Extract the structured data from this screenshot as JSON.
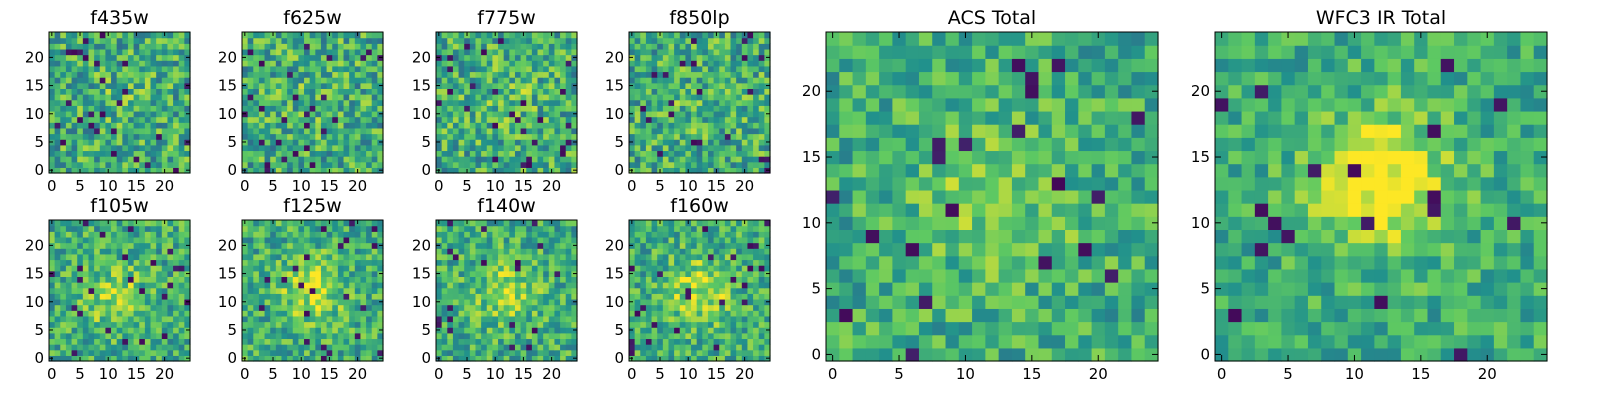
{
  "colors": {
    "colormap": [
      "#440154",
      "#3b528b",
      "#21918c",
      "#5ec962",
      "#fde725"
    ],
    "frame": "#000000",
    "background": "#ffffff"
  },
  "chart_data": [
    {
      "type": "heatmap",
      "title": "f435w",
      "grid_size": 25,
      "xlim": [
        0,
        24
      ],
      "ylim": [
        0,
        24
      ],
      "xticks": [
        0,
        5,
        10,
        15,
        20
      ],
      "yticks": [
        0,
        5,
        10,
        15,
        20
      ],
      "xtick_labels": [
        "0",
        "5",
        "10",
        "15",
        "20"
      ],
      "ytick_labels": [
        "0",
        "5",
        "10",
        "15",
        "20"
      ],
      "seed": 11,
      "bump": 0.05,
      "bump_center": [
        12,
        12
      ],
      "bump_width": 4,
      "noise": 0.26
    },
    {
      "type": "heatmap",
      "title": "f625w",
      "grid_size": 25,
      "xlim": [
        0,
        24
      ],
      "ylim": [
        0,
        24
      ],
      "xticks": [
        0,
        5,
        10,
        15,
        20
      ],
      "yticks": [
        0,
        5,
        10,
        15,
        20
      ],
      "xtick_labels": [
        "0",
        "5",
        "10",
        "15",
        "20"
      ],
      "ytick_labels": [
        "0",
        "5",
        "10",
        "15",
        "20"
      ],
      "seed": 23,
      "bump": 0.05,
      "bump_center": [
        12,
        12
      ],
      "bump_width": 4,
      "noise": 0.26
    },
    {
      "type": "heatmap",
      "title": "f775w",
      "grid_size": 25,
      "xlim": [
        0,
        24
      ],
      "ylim": [
        0,
        24
      ],
      "xticks": [
        0,
        5,
        10,
        15,
        20
      ],
      "yticks": [
        0,
        5,
        10,
        15,
        20
      ],
      "xtick_labels": [
        "0",
        "5",
        "10",
        "15",
        "20"
      ],
      "ytick_labels": [
        "0",
        "5",
        "10",
        "15",
        "20"
      ],
      "seed": 37,
      "bump": 0.1,
      "bump_center": [
        12,
        13
      ],
      "bump_width": 4,
      "noise": 0.26
    },
    {
      "type": "heatmap",
      "title": "f850lp",
      "grid_size": 25,
      "xlim": [
        0,
        24
      ],
      "ylim": [
        0,
        24
      ],
      "xticks": [
        0,
        5,
        10,
        15,
        20
      ],
      "yticks": [
        0,
        5,
        10,
        15,
        20
      ],
      "xtick_labels": [
        "0",
        "5",
        "10",
        "15",
        "20"
      ],
      "ytick_labels": [
        "0",
        "5",
        "10",
        "15",
        "20"
      ],
      "seed": 41,
      "bump": 0.05,
      "bump_center": [
        12,
        12
      ],
      "bump_width": 4,
      "noise": 0.26
    },
    {
      "type": "heatmap",
      "title": "f105w",
      "grid_size": 25,
      "xlim": [
        0,
        24
      ],
      "ylim": [
        0,
        24
      ],
      "xticks": [
        0,
        5,
        10,
        15,
        20
      ],
      "yticks": [
        0,
        5,
        10,
        15,
        20
      ],
      "xtick_labels": [
        "0",
        "5",
        "10",
        "15",
        "20"
      ],
      "ytick_labels": [
        "0",
        "5",
        "10",
        "15",
        "20"
      ],
      "seed": 53,
      "bump": 0.22,
      "bump_center": [
        11,
        11
      ],
      "bump_width": 4,
      "noise": 0.22
    },
    {
      "type": "heatmap",
      "title": "f125w",
      "grid_size": 25,
      "xlim": [
        0,
        24
      ],
      "ylim": [
        0,
        24
      ],
      "xticks": [
        0,
        5,
        10,
        15,
        20
      ],
      "yticks": [
        0,
        5,
        10,
        15,
        20
      ],
      "xtick_labels": [
        "0",
        "5",
        "10",
        "15",
        "20"
      ],
      "ytick_labels": [
        "0",
        "5",
        "10",
        "15",
        "20"
      ],
      "seed": 67,
      "bump": 0.28,
      "bump_center": [
        12,
        12
      ],
      "bump_width": 4,
      "noise": 0.22
    },
    {
      "type": "heatmap",
      "title": "f140w",
      "grid_size": 25,
      "xlim": [
        0,
        24
      ],
      "ylim": [
        0,
        24
      ],
      "xticks": [
        0,
        5,
        10,
        15,
        20
      ],
      "yticks": [
        0,
        5,
        10,
        15,
        20
      ],
      "xtick_labels": [
        "0",
        "5",
        "10",
        "15",
        "20"
      ],
      "ytick_labels": [
        "0",
        "5",
        "10",
        "15",
        "20"
      ],
      "seed": 79,
      "bump": 0.22,
      "bump_center": [
        12,
        12
      ],
      "bump_width": 4,
      "noise": 0.22
    },
    {
      "type": "heatmap",
      "title": "f160w",
      "grid_size": 25,
      "xlim": [
        0,
        24
      ],
      "ylim": [
        0,
        24
      ],
      "xticks": [
        0,
        5,
        10,
        15,
        20
      ],
      "yticks": [
        0,
        5,
        10,
        15,
        20
      ],
      "xtick_labels": [
        "0",
        "5",
        "10",
        "15",
        "20"
      ],
      "ytick_labels": [
        "0",
        "5",
        "10",
        "15",
        "20"
      ],
      "seed": 83,
      "bump": 0.28,
      "bump_center": [
        12,
        12
      ],
      "bump_width": 4,
      "noise": 0.22
    },
    {
      "type": "heatmap",
      "title": "ACS Total",
      "grid_size": 25,
      "xlim": [
        0,
        24
      ],
      "ylim": [
        0,
        24
      ],
      "xticks": [
        0,
        5,
        10,
        15,
        20
      ],
      "yticks": [
        0,
        5,
        10,
        15,
        20
      ],
      "xtick_labels": [
        "0",
        "5",
        "10",
        "15",
        "20"
      ],
      "ytick_labels": [
        "0",
        "5",
        "10",
        "15",
        "20"
      ],
      "seed": 97,
      "bump": 0.18,
      "bump_center": [
        12,
        12
      ],
      "bump_width": 4.5,
      "noise": 0.2
    },
    {
      "type": "heatmap",
      "title": "WFC3 IR Total",
      "grid_size": 25,
      "xlim": [
        0,
        24
      ],
      "ylim": [
        0,
        24
      ],
      "xticks": [
        0,
        5,
        10,
        15,
        20
      ],
      "yticks": [
        0,
        5,
        10,
        15,
        20
      ],
      "xtick_labels": [
        "0",
        "5",
        "10",
        "15",
        "20"
      ],
      "ytick_labels": [
        "0",
        "5",
        "10",
        "15",
        "20"
      ],
      "seed": 101,
      "bump": 0.45,
      "bump_center": [
        12,
        13
      ],
      "bump_width": 3.5,
      "noise": 0.18
    }
  ]
}
